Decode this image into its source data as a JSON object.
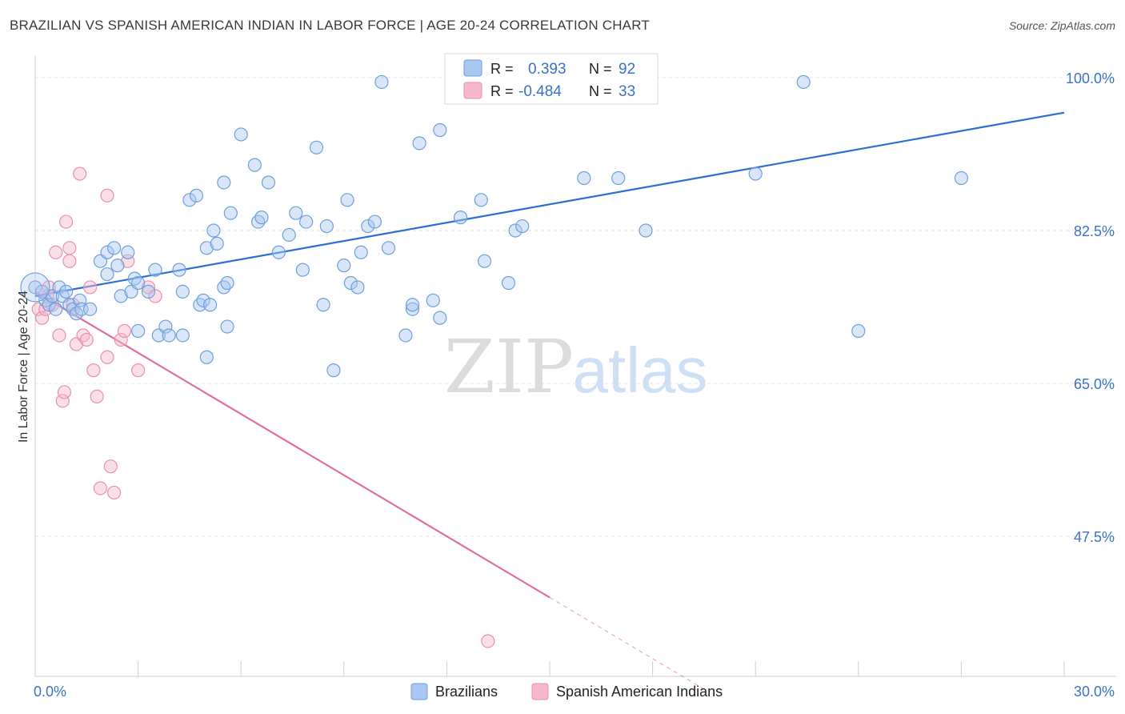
{
  "header": {
    "title": "BRAZILIAN VS SPANISH AMERICAN INDIAN IN LABOR FORCE | AGE 20-24 CORRELATION CHART",
    "source": "Source: ZipAtlas.com"
  },
  "watermark": {
    "zip": "ZIP",
    "atlas": "atlas"
  },
  "legend_top": {
    "rows": [
      {
        "r_label": "R =",
        "r_value": "0.393",
        "n_label": "N =",
        "n_value": "92"
      },
      {
        "r_label": "R =",
        "r_value": "-0.484",
        "n_label": "N =",
        "n_value": "33"
      }
    ]
  },
  "legend_bottom": {
    "items": [
      {
        "label": "Brazilians"
      },
      {
        "label": "Spanish American Indians"
      }
    ]
  },
  "colors": {
    "blue_fill": "#a9c7f0",
    "blue_stroke": "#6f9fdc",
    "blue_line": "#2a6fd0",
    "pink_fill": "#f6b9cc",
    "pink_stroke": "#e890ad",
    "pink_line": "#e0709a",
    "tick_label": "#3a72c8",
    "grid": "#e3e3e3"
  },
  "chart_data": {
    "type": "scatter",
    "xlabel": "",
    "ylabel": "In Labor Force | Age 20-24",
    "xlim": [
      0.0,
      30.0
    ],
    "ylim": [
      31.0,
      102.0
    ],
    "x_tick_labels": [
      {
        "value": 0.0,
        "label": "0.0%"
      },
      {
        "value": 30.0,
        "label": "30.0%"
      }
    ],
    "y_tick_labels": [
      {
        "value": 100.0,
        "label": "100.0%"
      },
      {
        "value": 82.5,
        "label": "82.5%"
      },
      {
        "value": 65.0,
        "label": "65.0%"
      },
      {
        "value": 47.5,
        "label": "47.5%"
      }
    ],
    "grid": "horizontal dashed",
    "series": [
      {
        "name": "Brazilians",
        "color": "blue",
        "points": [
          [
            0.0,
            76.0
          ],
          [
            0.2,
            75.5
          ],
          [
            0.3,
            74.5
          ],
          [
            0.4,
            74.0
          ],
          [
            0.5,
            75.0
          ],
          [
            0.6,
            73.5
          ],
          [
            0.7,
            76.0
          ],
          [
            0.8,
            75.0
          ],
          [
            0.9,
            75.5
          ],
          [
            1.0,
            74.0
          ],
          [
            1.1,
            73.5
          ],
          [
            1.2,
            73.0
          ],
          [
            1.3,
            74.5
          ],
          [
            1.35,
            73.5
          ],
          [
            1.6,
            73.5
          ],
          [
            1.9,
            79.0
          ],
          [
            2.1,
            80.0
          ],
          [
            2.1,
            77.5
          ],
          [
            2.3,
            80.5
          ],
          [
            2.4,
            78.5
          ],
          [
            2.5,
            75.0
          ],
          [
            2.7,
            80.0
          ],
          [
            2.8,
            75.5
          ],
          [
            2.9,
            77.0
          ],
          [
            3.0,
            76.5
          ],
          [
            3.0,
            71.0
          ],
          [
            3.3,
            75.5
          ],
          [
            3.5,
            78.0
          ],
          [
            3.6,
            70.5
          ],
          [
            3.8,
            71.5
          ],
          [
            3.9,
            70.5
          ],
          [
            4.2,
            78.0
          ],
          [
            4.3,
            75.5
          ],
          [
            4.3,
            70.5
          ],
          [
            4.5,
            86.0
          ],
          [
            4.7,
            86.5
          ],
          [
            4.8,
            74.0
          ],
          [
            4.9,
            74.5
          ],
          [
            5.0,
            68.0
          ],
          [
            5.0,
            80.5
          ],
          [
            5.1,
            74.0
          ],
          [
            5.2,
            82.5
          ],
          [
            5.3,
            81.0
          ],
          [
            5.5,
            76.0
          ],
          [
            5.5,
            88.0
          ],
          [
            5.6,
            76.5
          ],
          [
            5.6,
            71.5
          ],
          [
            5.7,
            84.5
          ],
          [
            6.0,
            93.5
          ],
          [
            6.4,
            90.0
          ],
          [
            6.5,
            83.5
          ],
          [
            6.6,
            84.0
          ],
          [
            6.8,
            88.0
          ],
          [
            7.1,
            80.0
          ],
          [
            7.4,
            82.0
          ],
          [
            7.6,
            84.5
          ],
          [
            7.8,
            78.0
          ],
          [
            7.9,
            83.5
          ],
          [
            8.2,
            92.0
          ],
          [
            8.4,
            74.0
          ],
          [
            8.5,
            83.0
          ],
          [
            8.7,
            66.5
          ],
          [
            9.0,
            78.5
          ],
          [
            9.1,
            86.0
          ],
          [
            9.2,
            76.5
          ],
          [
            9.4,
            76.0
          ],
          [
            9.5,
            80.0
          ],
          [
            9.7,
            83.0
          ],
          [
            9.9,
            83.5
          ],
          [
            10.1,
            99.5
          ],
          [
            10.3,
            80.5
          ],
          [
            10.8,
            70.5
          ],
          [
            11.0,
            73.5
          ],
          [
            11.0,
            74.0
          ],
          [
            11.2,
            92.5
          ],
          [
            11.6,
            74.5
          ],
          [
            11.8,
            94.0
          ],
          [
            11.8,
            72.5
          ],
          [
            12.4,
            84.0
          ],
          [
            13.0,
            86.0
          ],
          [
            13.0,
            99.0
          ],
          [
            13.1,
            79.0
          ],
          [
            13.8,
            76.5
          ],
          [
            14.0,
            82.5
          ],
          [
            14.2,
            83.0
          ],
          [
            16.0,
            88.5
          ],
          [
            17.0,
            88.5
          ],
          [
            17.8,
            82.5
          ],
          [
            21.0,
            89.0
          ],
          [
            22.4,
            99.5
          ],
          [
            24.0,
            71.0
          ],
          [
            27.0,
            88.5
          ]
        ],
        "trend_line": {
          "x": [
            0.0,
            30.0
          ],
          "y": [
            75.0,
            96.0
          ]
        }
      },
      {
        "name": "Spanish American Indians",
        "color": "pink",
        "points": [
          [
            0.1,
            73.5
          ],
          [
            0.2,
            72.5
          ],
          [
            0.3,
            73.5
          ],
          [
            0.35,
            75.0
          ],
          [
            0.4,
            76.0
          ],
          [
            0.5,
            74.0
          ],
          [
            0.6,
            80.0
          ],
          [
            0.7,
            70.5
          ],
          [
            0.8,
            63.0
          ],
          [
            0.85,
            64.0
          ],
          [
            0.9,
            83.5
          ],
          [
            1.0,
            79.0
          ],
          [
            1.0,
            80.5
          ],
          [
            1.1,
            74.0
          ],
          [
            1.2,
            69.5
          ],
          [
            1.3,
            89.0
          ],
          [
            1.4,
            70.5
          ],
          [
            1.5,
            70.0
          ],
          [
            1.6,
            76.0
          ],
          [
            1.7,
            66.5
          ],
          [
            1.8,
            63.5
          ],
          [
            1.9,
            53.0
          ],
          [
            2.1,
            68.0
          ],
          [
            2.1,
            86.5
          ],
          [
            2.2,
            55.5
          ],
          [
            2.3,
            52.5
          ],
          [
            2.5,
            70.0
          ],
          [
            2.6,
            71.0
          ],
          [
            2.7,
            79.0
          ],
          [
            3.0,
            66.5
          ],
          [
            3.3,
            76.0
          ],
          [
            3.5,
            75.0
          ],
          [
            13.2,
            35.5
          ]
        ],
        "trend_line": {
          "x": [
            0.0,
            15.0
          ],
          "y": [
            75.5,
            40.5
          ],
          "dashed_to": {
            "x": 19.5,
            "y": 30.0
          }
        }
      }
    ]
  }
}
